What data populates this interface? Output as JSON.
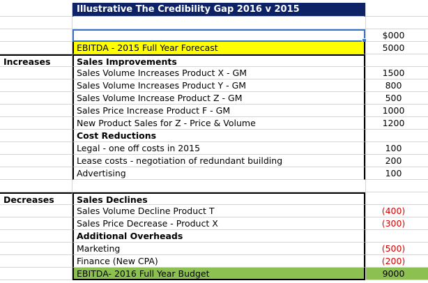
{
  "title": "Illustrative The Credibility Gap 2016 v 2015",
  "unit_label": "$000",
  "rows": [
    {
      "label": "",
      "item": "EBITDA - 2015 Full Year Forecast",
      "value": "5000"
    },
    {
      "label": "Increases",
      "item": "Sales Improvements",
      "value": ""
    },
    {
      "label": "",
      "item": "Sales Volume Increases Product X - GM",
      "value": "1500"
    },
    {
      "label": "",
      "item": "Sales Volume  Increases Product  Y - GM",
      "value": "800"
    },
    {
      "label": "",
      "item": "Sales Volume Increase Product Z - GM",
      "value": "500"
    },
    {
      "label": "",
      "item": "Sales Price Increase Product F - GM",
      "value": "1000"
    },
    {
      "label": "",
      "item": "New Product Sales for Z - Price & Volume",
      "value": "1200"
    },
    {
      "label": "",
      "item": "Cost Reductions",
      "value": ""
    },
    {
      "label": "",
      "item": "Legal - one off costs in 2015",
      "value": "100"
    },
    {
      "label": "",
      "item": "Lease costs - negotiation of redundant building",
      "value": "200"
    },
    {
      "label": "",
      "item": "Advertising",
      "value": "100"
    },
    {
      "label": "",
      "item": "",
      "value": ""
    },
    {
      "label": "Decreases",
      "item": "Sales Declines",
      "value": ""
    },
    {
      "label": "",
      "item": "Sales Volume Decline Product T",
      "value": "(400)"
    },
    {
      "label": "",
      "item": "Sales Price Decrease - Product X",
      "value": "(300)"
    },
    {
      "label": "",
      "item": "Additional Overheads",
      "value": ""
    },
    {
      "label": "",
      "item": "Marketing",
      "value": "(500)"
    },
    {
      "label": "",
      "item": "Finance (New CPA)",
      "value": "(200)"
    },
    {
      "label": "",
      "item": "EBITDA- 2016 Full Year Budget",
      "value": "9000"
    }
  ]
}
